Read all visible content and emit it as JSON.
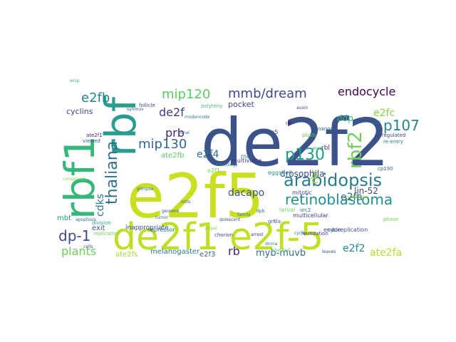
{
  "words": [
    {
      "text": "de2f2",
      "color": "#3b528b"
    },
    {
      "text": "e2f5",
      "color": "#c8e020"
    },
    {
      "text": "de2f1",
      "color": "#bddf26"
    },
    {
      "text": "e2f-5",
      "color": "#c2df23"
    },
    {
      "text": "rbf1",
      "color": "#35b779"
    },
    {
      "text": "rbf",
      "color": "#2a9d8f"
    },
    {
      "text": "arabidopsis",
      "color": "#287d8e"
    },
    {
      "text": "thaliana",
      "color": "#2c728e"
    },
    {
      "text": "retinoblastoma",
      "color": "#21918c"
    },
    {
      "text": "p130",
      "color": "#1fa088"
    },
    {
      "text": "rbf2",
      "color": "#6ece58"
    },
    {
      "text": "mmb/dream",
      "color": "#3e4a89"
    },
    {
      "text": "mip120",
      "color": "#5ec962"
    },
    {
      "text": "mip130",
      "color": "#31688e"
    },
    {
      "text": "dp-1",
      "color": "#3e4989"
    },
    {
      "text": "e2fb",
      "color": "#26828e"
    },
    {
      "text": "endocycle",
      "color": "#440154"
    },
    {
      "text": "p107",
      "color": "#26838f"
    },
    {
      "text": "e2fc",
      "color": "#84d44b"
    },
    {
      "text": "de2f",
      "color": "#443983"
    },
    {
      "text": "prb",
      "color": "#482677"
    },
    {
      "text": "e2f4",
      "color": "#2c728e"
    },
    {
      "text": "plants",
      "color": "#6ece58"
    },
    {
      "text": "cdks",
      "color": "#2a788e"
    },
    {
      "text": "dacapo",
      "color": "#3b528b"
    },
    {
      "text": "e2fa",
      "color": "#31688e"
    },
    {
      "text": "e2f2",
      "color": "#23898e"
    },
    {
      "text": "rb",
      "color": "#482475"
    },
    {
      "text": "myb-muvb",
      "color": "#2d708e"
    },
    {
      "text": "ate2fa",
      "color": "#b5de2b"
    },
    {
      "text": "ate2fb",
      "color": "#5ec962"
    },
    {
      "text": "rbr",
      "color": "#a0da39"
    },
    {
      "text": "drosophila",
      "color": "#3e4989"
    },
    {
      "text": "lin-52",
      "color": "#414487"
    },
    {
      "text": "pocket",
      "color": "#3f4788"
    },
    {
      "text": "cyclins",
      "color": "#404688"
    },
    {
      "text": "ddp",
      "color": "#35b779"
    },
    {
      "text": "mbt",
      "color": "#21918c"
    },
    {
      "text": "exit",
      "color": "#3b528b"
    },
    {
      "text": "melanogaster",
      "color": "#2a788e"
    },
    {
      "text": "ate2fs",
      "color": "#a2da37"
    },
    {
      "text": "e2f3",
      "color": "#31688e"
    },
    {
      "text": "inappropriate",
      "color": "#3e4a89"
    },
    {
      "text": "e2f1",
      "color": "#7ad151"
    },
    {
      "text": "orc5",
      "color": "#3b528b"
    },
    {
      "text": "rbl",
      "color": "#472d7b"
    },
    {
      "text": "rnai",
      "color": "#2c728e"
    },
    {
      "text": "multivulva",
      "color": "#46337e"
    },
    {
      "text": "eggshell",
      "color": "#1f988b"
    },
    {
      "text": "mitotic",
      "color": "#3e4a89"
    },
    {
      "text": "larval",
      "color": "#6ece58"
    },
    {
      "text": "multicellular",
      "color": "#453781"
    },
    {
      "text": "endoreplication",
      "color": "#3b528b"
    },
    {
      "text": "replication",
      "color": "#7ad151"
    },
    {
      "text": "repressor",
      "color": "#2c728e"
    },
    {
      "text": "division",
      "color": "#22a884"
    },
    {
      "text": "orc2",
      "color": "#2a788e"
    },
    {
      "text": "gr6la",
      "color": "#3b528b"
    },
    {
      "text": "inherited",
      "color": "#5ec962"
    },
    {
      "text": "polyteny",
      "color": "#44bf70"
    },
    {
      "text": "follicle",
      "color": "#3e4989"
    },
    {
      "text": "viewed",
      "color": "#3b528b"
    },
    {
      "text": "ate2f1",
      "color": "#482475"
    },
    {
      "text": "ploidy",
      "color": "#5ec962"
    },
    {
      "text": "nanos",
      "color": "#31688e"
    },
    {
      "text": "cdk",
      "color": "#2c728e"
    },
    {
      "text": "deregulated",
      "color": "#3e4a89"
    },
    {
      "text": "re-entry",
      "color": "#26828e"
    },
    {
      "text": "cp190",
      "color": "#31688e"
    },
    {
      "text": "phase",
      "color": "#6ece58"
    },
    {
      "text": "cycle",
      "color": "#3b528b"
    },
    {
      "text": "foundation",
      "color": "#46337e"
    },
    {
      "text": "chorion",
      "color": "#3e4989"
    },
    {
      "text": "pupal",
      "color": "#84d44b"
    },
    {
      "text": "modencode",
      "color": "#2a788e"
    },
    {
      "text": "genome",
      "color": "#3b528b"
    },
    {
      "text": "homology",
      "color": "#26828e"
    },
    {
      "text": "family",
      "color": "#2a788e"
    },
    {
      "text": "quiescent",
      "color": "#3e4989"
    },
    {
      "text": "wing",
      "color": "#44bf70"
    },
    {
      "text": "rbl",
      "color": "#440154"
    },
    {
      "text": "auxin",
      "color": "#3e4989"
    },
    {
      "text": "dpb",
      "color": "#31688e"
    },
    {
      "text": "synmuv",
      "color": "#3b528b"
    },
    {
      "text": "cycle",
      "color": "#26828e"
    },
    {
      "text": "arrest",
      "color": "#46337e"
    },
    {
      "text": "glimpse",
      "color": "#31688e"
    },
    {
      "text": "tumor",
      "color": "#2c728e"
    },
    {
      "text": "onto",
      "color": "#31688e"
    },
    {
      "text": "conserved",
      "color": "#7ad151"
    },
    {
      "text": "cells",
      "color": "#3b528b"
    },
    {
      "text": "dnrna",
      "color": "#2a788e"
    },
    {
      "text": "wisp",
      "color": "#44bf70"
    },
    {
      "text": "zonal",
      "color": "#2c728e"
    },
    {
      "text": "apoptosis",
      "color": "#31688e"
    },
    {
      "text": "ecdysone",
      "color": "#a0da39"
    },
    {
      "text": "leaves",
      "color": "#3e4989"
    }
  ]
}
